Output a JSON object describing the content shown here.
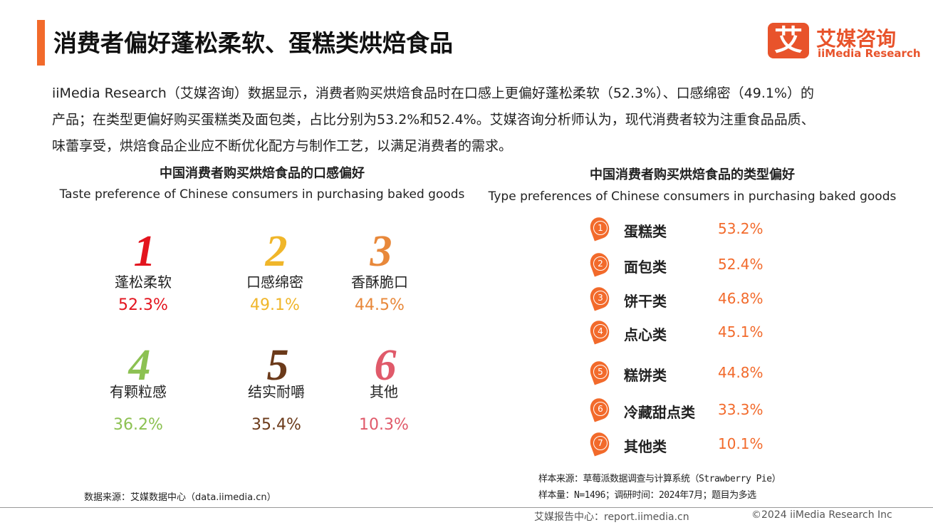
{
  "header": {
    "title": "消费者偏好蓬松柔软、蛋糕类烘焙食品"
  },
  "logo": {
    "mark": "艾",
    "cn": "艾媒咨询",
    "en": "iiMedia Research"
  },
  "intro": {
    "lines": [
      "iiMedia Research（艾媒咨询）数据显示，消费者购买烘焙食品时在口感上更偏好蓬松柔软（52.3%）、口感绵密（49.1%）的",
      "产品；在类型更偏好购买蛋糕类及面包类，占比分别为53.2%和52.4%。艾媒咨询分析师认为，现代消费者较为注重食品品质、",
      "味蕾享受，烘焙食品企业应不断优化配方与制作工艺，以满足消费者的需求。"
    ]
  },
  "left": {
    "title": "中国消费者购买烘焙食品的口感偏好",
    "subtitle": "Taste preference of Chinese consumers in purchasing baked goods",
    "items": [
      {
        "rank": "1",
        "label": "蓬松柔软",
        "value": "52.3%"
      },
      {
        "rank": "2",
        "label": "口感绵密",
        "value": "49.1%"
      },
      {
        "rank": "3",
        "label": "香酥脆口",
        "value": "44.5%"
      },
      {
        "rank": "4",
        "label": "有颗粒感",
        "value": "36.2%"
      },
      {
        "rank": "5",
        "label": "结实耐嚼",
        "value": "35.4%"
      },
      {
        "rank": "6",
        "label": "其他",
        "value": "10.3%"
      }
    ],
    "source": "数据来源：艾媒数据中心（data.iimedia.cn）"
  },
  "right": {
    "title": "中国消费者购买烘焙食品的类型偏好",
    "subtitle": "Type preferences of Chinese consumers in purchasing baked goods",
    "items": [
      {
        "rank": "1",
        "label": "蛋糕类",
        "value": "53.2%"
      },
      {
        "rank": "2",
        "label": "面包类",
        "value": "52.4%"
      },
      {
        "rank": "3",
        "label": "饼干类",
        "value": "46.8%"
      },
      {
        "rank": "4",
        "label": "点心类",
        "value": "45.1%"
      },
      {
        "rank": "5",
        "label": "糕饼类",
        "value": "44.8%"
      },
      {
        "rank": "6",
        "label": "冷藏甜点类",
        "value": "33.3%"
      },
      {
        "rank": "7",
        "label": "其他类",
        "value": "10.1%"
      }
    ],
    "notes": [
      "样本来源：草莓派数据调查与计算系统（Strawberry Pie）",
      "样本量：N=1496；调研时间：2024年7月；题目为多选"
    ]
  },
  "footer": {
    "center": "艾媒报告中心：report.iimedia.cn",
    "right": "©2024  iiMedia Research  Inc"
  }
}
